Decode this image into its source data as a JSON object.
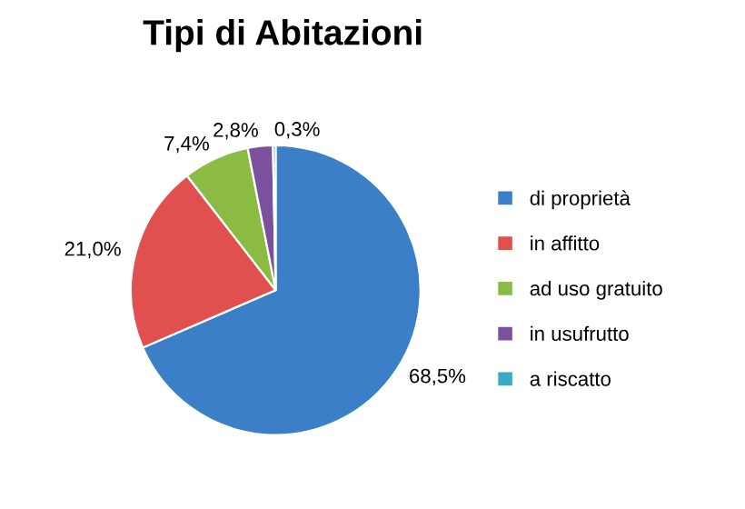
{
  "chart_data": {
    "type": "pie",
    "title": "Tipi di Abitazioni",
    "categories": [
      "di proprietà",
      "in affitto",
      "ad uso gratuito",
      "in usufrutto",
      "a riscatto"
    ],
    "values": [
      68.5,
      21.0,
      7.4,
      2.8,
      0.3
    ],
    "value_labels": [
      "68,5%",
      "21,0%",
      "7,4%",
      "2,8%",
      "0,3%"
    ],
    "colors": [
      "#3b7fc6",
      "#e0504e",
      "#8cbb44",
      "#7b519e",
      "#3aa9c4"
    ],
    "legend": "right"
  }
}
